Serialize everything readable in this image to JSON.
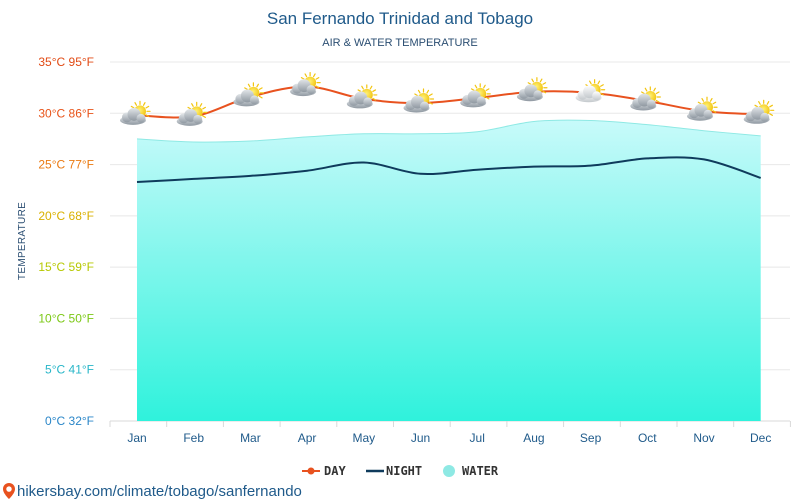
{
  "header": {
    "title": "San Fernando Trinidad and Tobago",
    "subtitle": "AIR & WATER TEMPERATURE"
  },
  "footer": {
    "url": "hikersbay.com/climate/tobago/sanfernando"
  },
  "colors": {
    "day": "#e8521f",
    "night": "#0f3b5c",
    "water_top": "#c8fafa",
    "water_bottom": "#2ff2dc",
    "water_edge": "#8ee9e4",
    "grid": "#e8e8e8",
    "icon_cloud": "#9aa3ab",
    "icon_sun": "#f5d41a"
  },
  "chart_data": {
    "type": "line",
    "ylabel": "TEMPERATURE",
    "ylim": [
      0,
      35
    ],
    "yticks": [
      {
        "value": 35,
        "label": "35°C 95°F",
        "color": "#e14a14"
      },
      {
        "value": 30,
        "label": "30°C 86°F",
        "color": "#e8541a"
      },
      {
        "value": 25,
        "label": "25°C 77°F",
        "color": "#ea7a12"
      },
      {
        "value": 20,
        "label": "20°C 68°F",
        "color": "#d9b000"
      },
      {
        "value": 15,
        "label": "15°C 59°F",
        "color": "#b6c800"
      },
      {
        "value": 10,
        "label": "10°C 50°F",
        "color": "#7cc816"
      },
      {
        "value": 5,
        "label": "5°C 41°F",
        "color": "#28b6c8"
      },
      {
        "value": 0,
        "label": "0°C 32°F",
        "color": "#2a86c8"
      }
    ],
    "categories": [
      "Jan",
      "Feb",
      "Mar",
      "Apr",
      "May",
      "Jun",
      "Jul",
      "Aug",
      "Sep",
      "Oct",
      "Nov",
      "Dec"
    ],
    "series": [
      {
        "name": "DAY",
        "values": [
          29.8,
          29.7,
          31.6,
          32.6,
          31.4,
          31.0,
          31.5,
          32.1,
          32.0,
          31.2,
          30.2,
          29.9
        ]
      },
      {
        "name": "NIGHT",
        "values": [
          23.3,
          23.6,
          23.9,
          24.4,
          25.2,
          24.1,
          24.5,
          24.8,
          24.9,
          25.6,
          25.5,
          23.7
        ]
      },
      {
        "name": "WATER",
        "values": [
          27.5,
          27.2,
          27.3,
          27.7,
          28.0,
          28.0,
          28.2,
          29.2,
          29.3,
          28.9,
          28.3,
          27.8
        ]
      }
    ],
    "weather_icons": [
      "sun-cloud",
      "sun-cloud",
      "sun-cloud",
      "sun-cloud",
      "sun-cloud",
      "sun-cloud",
      "sun-cloud",
      "sun-cloud",
      "cloud-sun-pale",
      "sun-cloud",
      "sun-cloud",
      "sun-cloud"
    ],
    "legend": [
      "DAY",
      "NIGHT",
      "WATER"
    ],
    "legend_position": "bottom-center",
    "grid": true
  }
}
